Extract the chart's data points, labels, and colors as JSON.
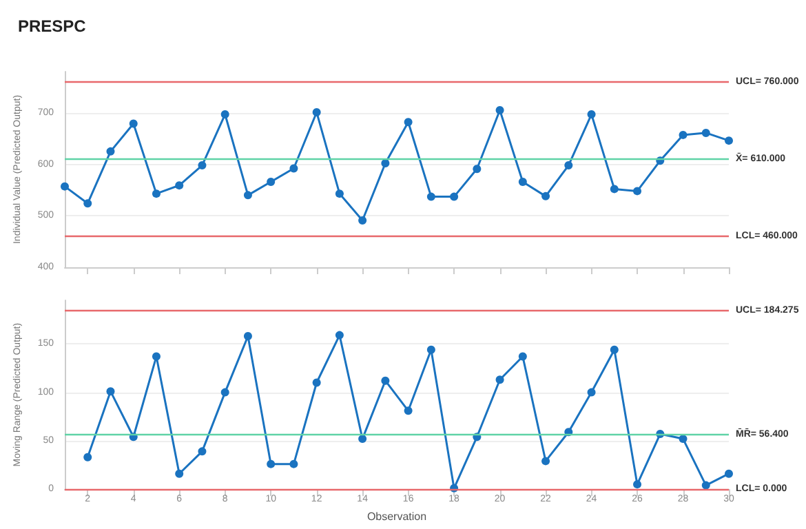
{
  "chart_data": [
    {
      "type": "line",
      "title": "PRESPC",
      "ylabel": "Individual Value (Predicted Output)",
      "x": [
        1,
        2,
        3,
        4,
        5,
        6,
        7,
        8,
        9,
        10,
        11,
        12,
        13,
        14,
        15,
        16,
        17,
        18,
        19,
        20,
        21,
        22,
        23,
        24,
        25,
        26,
        27,
        28,
        29,
        30
      ],
      "series": [
        {
          "color": "#1a73c0",
          "values": [
            557,
            524,
            625,
            679,
            543,
            559,
            598,
            697,
            540,
            566,
            592,
            701,
            543,
            491,
            602,
            682,
            537,
            537,
            591,
            705,
            566,
            538,
            598,
            697,
            552,
            548,
            607,
            657,
            661,
            646
          ]
        }
      ],
      "xlim": [
        1,
        30
      ],
      "xticks": [
        2,
        4,
        6,
        8,
        10,
        12,
        14,
        16,
        18,
        20,
        22,
        24,
        26,
        28,
        30
      ],
      "ylim": [
        400,
        780
      ],
      "yticks": [
        400,
        500,
        600,
        700
      ],
      "ref_lines": [
        {
          "axis": "y",
          "value": 760,
          "label": "UCL= 760.000",
          "color": "#e8686b"
        },
        {
          "axis": "y",
          "value": 610,
          "label": "X̄= 610.000",
          "color": "#5fd3a6"
        },
        {
          "axis": "y",
          "value": 460,
          "label": "LCL= 460.000",
          "color": "#e8686b"
        }
      ],
      "tick_labels": "y",
      "grid": "y",
      "marker": "circle",
      "line_style": "solid"
    },
    {
      "type": "line",
      "xlabel": "Observation",
      "ylabel": "Moving Range (Predicted Output)",
      "x": [
        2,
        3,
        4,
        5,
        6,
        7,
        8,
        9,
        10,
        11,
        12,
        13,
        14,
        15,
        16,
        17,
        18,
        19,
        20,
        21,
        22,
        23,
        24,
        25,
        26,
        27,
        28,
        29,
        30
      ],
      "series": [
        {
          "color": "#1a73c0",
          "values": [
            33,
            101,
            54,
            137,
            16,
            39,
            100,
            158,
            26,
            26,
            110,
            159,
            52,
            112,
            81,
            144,
            1,
            54,
            113,
            137,
            29,
            59,
            100,
            144,
            5,
            57,
            52,
            4,
            16
          ]
        }
      ],
      "xlim": [
        1,
        30
      ],
      "xticks": [
        2,
        4,
        6,
        8,
        10,
        12,
        14,
        16,
        18,
        20,
        22,
        24,
        26,
        28,
        30
      ],
      "ylim": [
        0,
        195
      ],
      "yticks": [
        0,
        50,
        100,
        150
      ],
      "ref_lines": [
        {
          "axis": "y",
          "value": 184.275,
          "label": "UCL= 184.275",
          "color": "#e8686b"
        },
        {
          "axis": "y",
          "value": 56.4,
          "label": "M̄R̄= 56.400",
          "color": "#5fd3a6"
        },
        {
          "axis": "y",
          "value": 0,
          "label": "LCL= 0.000",
          "color": "#e8686b"
        }
      ],
      "grid": "y",
      "marker": "circle",
      "line_style": "solid"
    }
  ]
}
